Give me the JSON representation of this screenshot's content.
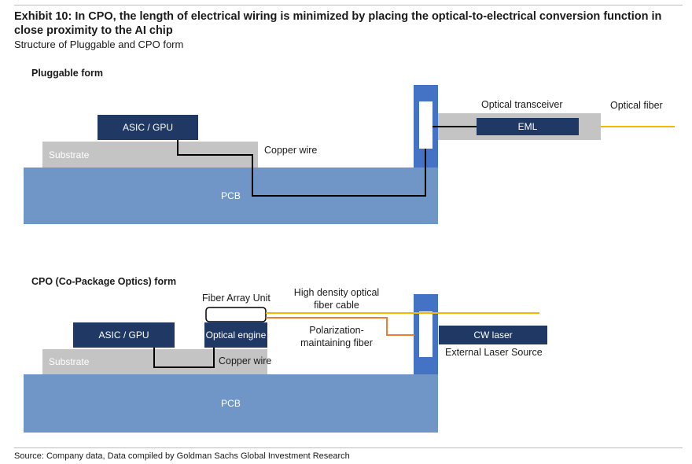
{
  "header": {
    "title": "Exhibit 10: In CPO, the length of electrical wiring is minimized by placing the optical-to-electrical conversion function in close proximity to the AI chip",
    "subtitle": "Structure of Pluggable and CPO form"
  },
  "pluggable": {
    "section_label": "Pluggable form",
    "asic_label": "ASIC / GPU",
    "substrate_label": "Substrate",
    "pcb_label": "PCB",
    "copper_label": "Copper wire",
    "transceiver_label": "Optical transceiver",
    "eml_label": "EML",
    "fiber_label": "Optical fiber"
  },
  "cpo": {
    "section_label": "CPO (Co-Package Optics) form",
    "asic_label": "ASIC / GPU",
    "substrate_label": "Substrate",
    "pcb_label": "PCB",
    "copper_label": "Copper wire",
    "fau_label": "Fiber Array Unit",
    "optical_engine_label": "Optical engine",
    "hd_fiber_label": "High density optical fiber cable",
    "pm_fiber_label": "Polarization-maintaining fiber",
    "cw_laser_label": "CW laser",
    "els_label": "External Laser Source"
  },
  "colors": {
    "pcb": "#6f96c7",
    "substrate": "#c4c4c4",
    "chip": "#1f3864",
    "pillar": "#4472c4",
    "optical_fiber": "#f5b800",
    "pm_fiber": "#ed7d31"
  },
  "footer": {
    "source": "Source: Company data, Data compiled by Goldman Sachs Global Investment Research"
  }
}
